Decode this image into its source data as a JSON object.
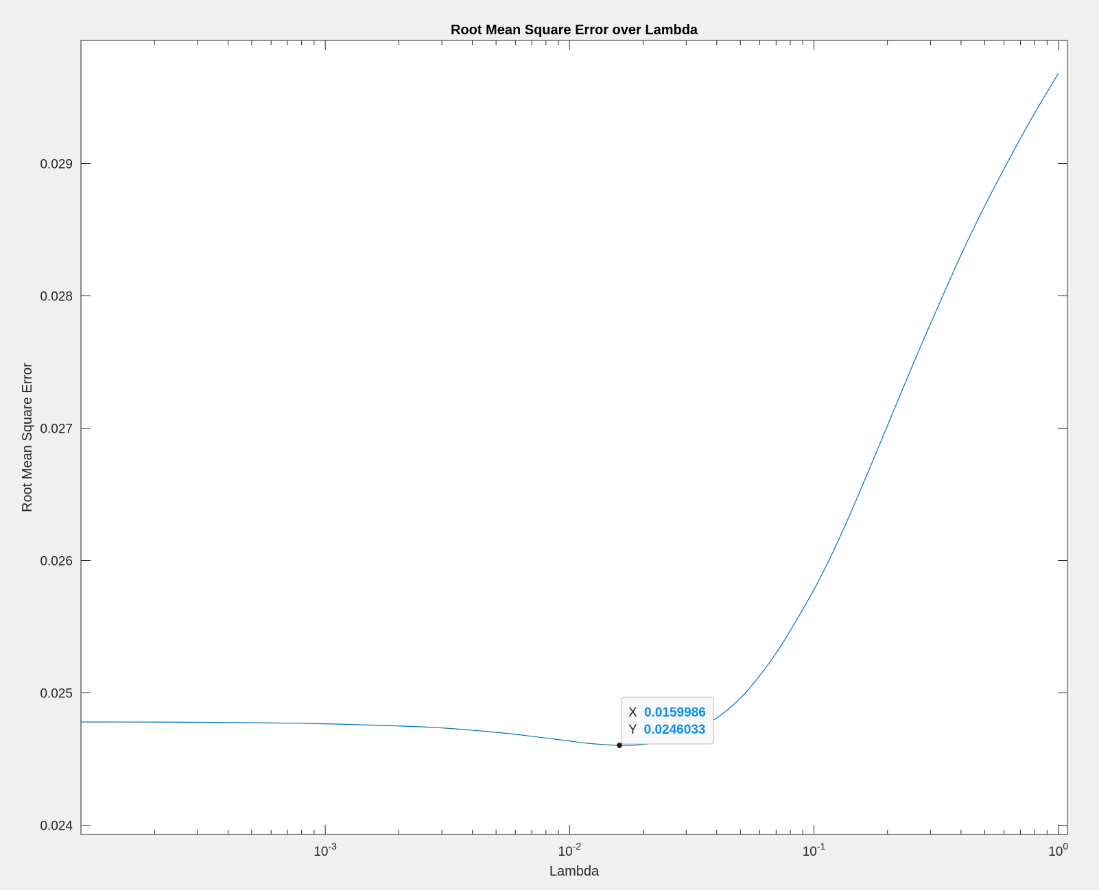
{
  "chart_data": {
    "type": "line",
    "title": "Root Mean Square Error over Lambda",
    "xlabel": "Lambda",
    "ylabel": "Root Mean Square Error",
    "xscale": "log",
    "xlim": [
      0.0001,
      1.09
    ],
    "ylim": [
      0.02393,
      0.02993
    ],
    "xticks": [
      {
        "value": 0.001,
        "base": "10",
        "exp": "-3"
      },
      {
        "value": 0.01,
        "base": "10",
        "exp": "-2"
      },
      {
        "value": 0.1,
        "base": "10",
        "exp": "-1"
      },
      {
        "value": 1,
        "base": "10",
        "exp": "0"
      }
    ],
    "yticks": [
      {
        "value": 0.024,
        "label": "0.024"
      },
      {
        "value": 0.025,
        "label": "0.025"
      },
      {
        "value": 0.026,
        "label": "0.026"
      },
      {
        "value": 0.027,
        "label": "0.027"
      },
      {
        "value": 0.028,
        "label": "0.028"
      },
      {
        "value": 0.029,
        "label": "0.029"
      }
    ],
    "grid": false,
    "series": [
      {
        "color": "#0072bd",
        "x": [
          0.0001,
          0.0002,
          0.0005,
          0.001,
          0.002,
          0.003,
          0.005,
          0.007,
          0.01,
          0.012,
          0.016,
          0.02,
          0.025,
          0.03,
          0.04,
          0.05,
          0.06,
          0.07,
          0.08,
          0.1,
          0.12,
          0.15,
          0.2,
          0.25,
          0.3,
          0.4,
          0.5,
          0.6,
          0.7,
          0.8,
          0.9,
          1.0
        ],
        "y": [
          0.02478,
          0.024779,
          0.024775,
          0.024766,
          0.02475,
          0.024735,
          0.024702,
          0.024672,
          0.024636,
          0.024618,
          0.0246033,
          0.02461,
          0.024635,
          0.02468,
          0.02481,
          0.02496,
          0.02513,
          0.0253,
          0.02547,
          0.02578,
          0.02607,
          0.02647,
          0.02702,
          0.02745,
          0.02779,
          0.02831,
          0.02868,
          0.02896,
          0.02919,
          0.02938,
          0.02954,
          0.02968
        ]
      }
    ],
    "datatip": {
      "x_label": "X",
      "x_value": "0.0159986",
      "y_label": "Y",
      "y_value": "0.0246033",
      "x": 0.0159986,
      "y": 0.0246033
    },
    "colors": {
      "line": "#0072bd",
      "datatip_value": "#0a8ff0"
    }
  }
}
